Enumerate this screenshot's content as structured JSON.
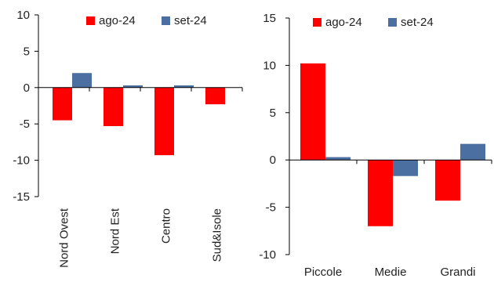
{
  "chart_data": [
    {
      "type": "bar",
      "categories": [
        "Nord Ovest",
        "Nord Est",
        "Centro",
        "Sud&Isole"
      ],
      "series": [
        {
          "name": "ago-24",
          "values": [
            -4.5,
            -5.3,
            -9.3,
            -2.3
          ]
        },
        {
          "name": "set-24",
          "values": [
            2.0,
            0.3,
            0.3,
            0.0
          ]
        }
      ],
      "ylim": [
        -15,
        10
      ],
      "yticks": [
        -15,
        -10,
        -5,
        0,
        5,
        10
      ],
      "legend_position": "top",
      "grid": false,
      "category_label_orientation": "vertical"
    },
    {
      "type": "bar",
      "categories": [
        "Piccole",
        "Medie",
        "Grandi"
      ],
      "series": [
        {
          "name": "ago-24",
          "values": [
            10.2,
            -7.0,
            -4.3
          ]
        },
        {
          "name": "set-24",
          "values": [
            0.3,
            -1.7,
            1.7
          ]
        }
      ],
      "ylim": [
        -10,
        15
      ],
      "yticks": [
        -10,
        -5,
        0,
        5,
        10,
        15
      ],
      "legend_position": "top",
      "grid": false,
      "category_label_orientation": "horizontal"
    }
  ],
  "colors": {
    "ago-24": "#ff0000",
    "set-24": "#4a6fa0",
    "axis": "#000000",
    "text": "#222222"
  }
}
